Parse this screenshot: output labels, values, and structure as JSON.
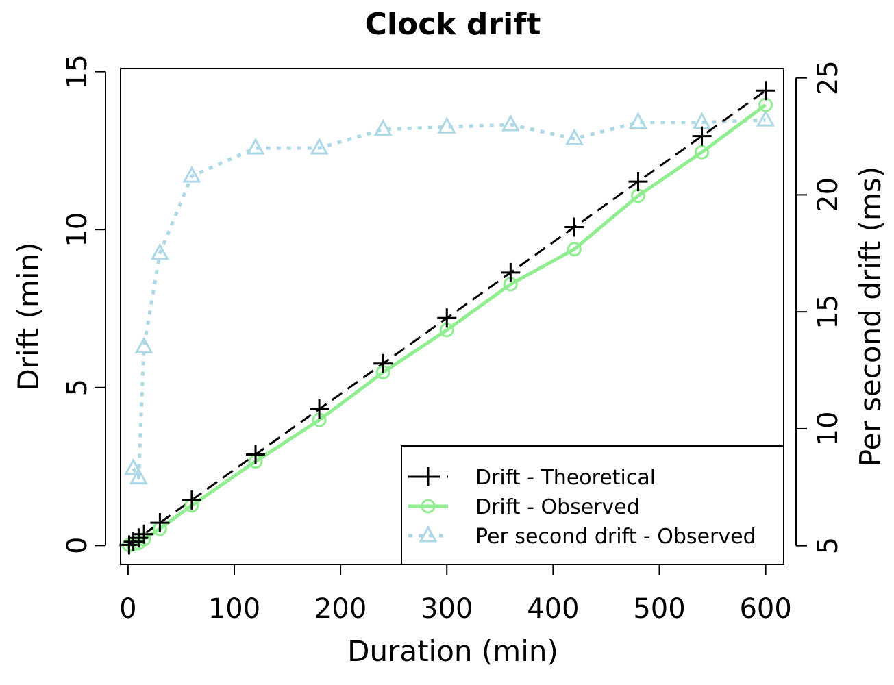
{
  "chart_data": {
    "type": "line",
    "title": "Clock drift",
    "xlabel": "Duration (min)",
    "ylabel": "Drift (min)",
    "y2label": "Per second drift (ms)",
    "xlim": [
      -7,
      617
    ],
    "ylim": [
      -0.6,
      15.1
    ],
    "y2lim": [
      4.2,
      25.4
    ],
    "xticks": [
      0,
      100,
      200,
      300,
      400,
      500,
      600
    ],
    "yticks": [
      0,
      5,
      10,
      15
    ],
    "y2ticks": [
      5,
      10,
      15,
      20,
      25
    ],
    "grid": false,
    "legend_position": "bottom-right",
    "series": [
      {
        "name": "Drift - Theoretical",
        "axis": "left",
        "color": "#000000",
        "line": "dashed",
        "marker": "plus",
        "x": [
          1,
          5,
          10,
          15,
          30,
          60,
          120,
          180,
          240,
          300,
          360,
          420,
          480,
          540,
          600
        ],
        "y": [
          0.02,
          0.12,
          0.24,
          0.36,
          0.72,
          1.44,
          2.88,
          4.32,
          5.76,
          7.2,
          8.64,
          10.08,
          11.52,
          12.96,
          14.4
        ]
      },
      {
        "name": "Drift - Observed",
        "axis": "left",
        "color": "#90ee90",
        "line": "solid",
        "marker": "circle",
        "x": [
          1,
          5,
          10,
          15,
          30,
          60,
          120,
          180,
          240,
          300,
          360,
          420,
          480,
          540,
          600
        ],
        "y": [
          0.01,
          0.03,
          0.08,
          0.2,
          0.53,
          1.27,
          2.66,
          3.97,
          5.48,
          6.82,
          8.27,
          9.38,
          11.07,
          12.45,
          13.95
        ]
      },
      {
        "name": "Per second drift - Observed",
        "axis": "right",
        "color": "#add8e6",
        "line": "dotted",
        "marker": "triangle",
        "x": [
          5,
          10,
          15,
          30,
          60,
          120,
          180,
          240,
          300,
          360,
          420,
          480,
          540,
          600
        ],
        "y": [
          8.3,
          7.9,
          13.5,
          17.5,
          20.8,
          22.0,
          22.0,
          22.8,
          22.9,
          23.0,
          22.4,
          23.1,
          23.1,
          23.2
        ]
      }
    ]
  }
}
